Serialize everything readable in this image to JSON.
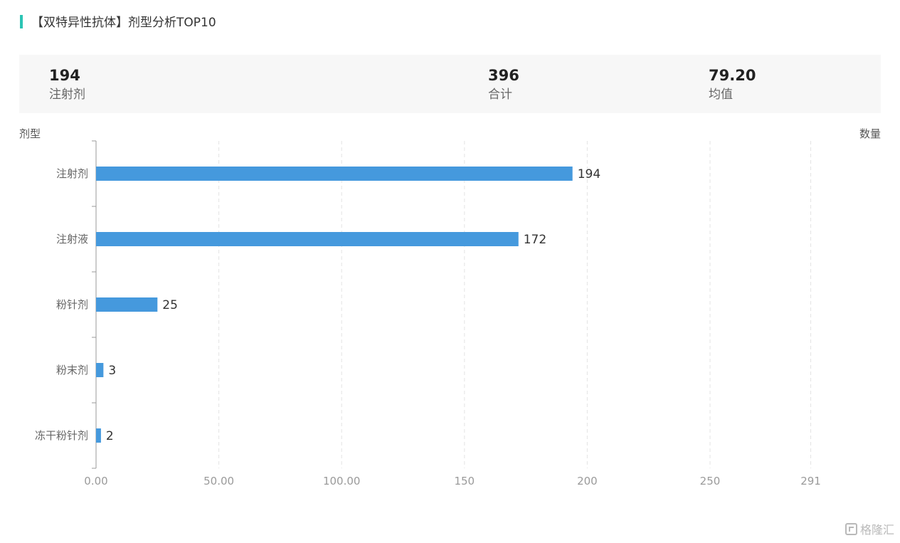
{
  "header": {
    "title": "【双特异性抗体】剂型分析TOP10"
  },
  "summary": {
    "top": {
      "value": "194",
      "label": "注射剂"
    },
    "total": {
      "value": "396",
      "label": "合计"
    },
    "mean": {
      "value": "79.20",
      "label": "均值"
    }
  },
  "chart_data": {
    "type": "bar",
    "orientation": "horizontal",
    "ylabel": "剂型",
    "xlabel": "数量",
    "categories": [
      "注射剂",
      "注射液",
      "粉针剂",
      "粉末剂",
      "冻干粉针剂"
    ],
    "values": [
      194,
      172,
      25,
      3,
      2
    ],
    "data_labels": [
      "194",
      "172",
      "25",
      "3",
      "2"
    ],
    "x_ticks": [
      {
        "value": 0,
        "label": "0.00"
      },
      {
        "value": 50,
        "label": "50.00"
      },
      {
        "value": 100,
        "label": "100.00"
      },
      {
        "value": 150,
        "label": "150"
      },
      {
        "value": 200,
        "label": "200"
      },
      {
        "value": 250,
        "label": "250"
      },
      {
        "value": 291,
        "label": "291"
      }
    ],
    "xlim": [
      0,
      320
    ],
    "grid": true,
    "bar_color": "#4599dd"
  },
  "watermark": {
    "text": "格隆汇"
  }
}
